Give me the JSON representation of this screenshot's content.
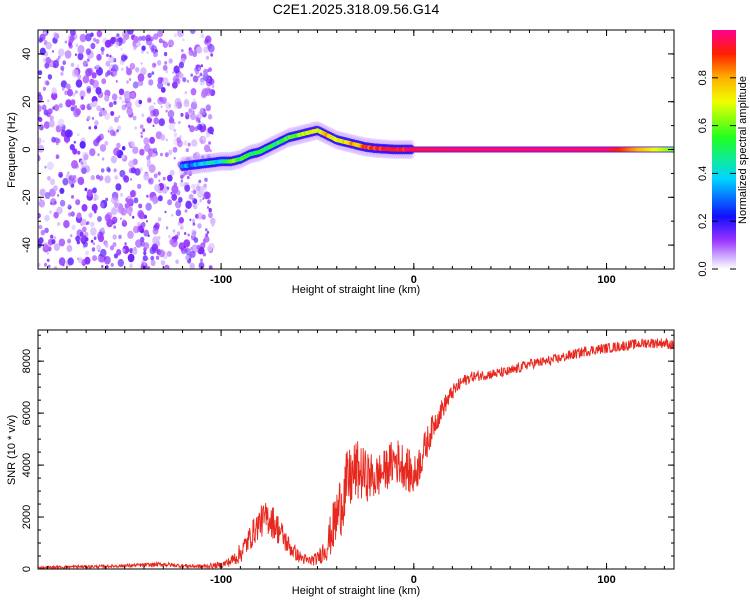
{
  "title": "C2E1.2025.318.09.56.G14",
  "colorbar": {
    "label": "Normalized spectral amplitude",
    "ticks": [
      "0.0",
      "0.2",
      "0.4",
      "0.6",
      "0.8"
    ],
    "tick_values": [
      0.0,
      0.2,
      0.4,
      0.6,
      0.8
    ],
    "range": [
      0,
      1
    ]
  },
  "chart_data": [
    {
      "type": "heatmap",
      "name": "spectrogram",
      "xlabel": "Height of straight line (km)",
      "ylabel": "Frequency (Hz)",
      "xlim": [
        -195,
        135
      ],
      "ylim": [
        -50,
        50
      ],
      "xticks": [
        "-100",
        "0",
        "100"
      ],
      "xtick_values": [
        -100,
        0,
        100
      ],
      "yticks": [
        "-40",
        "-20",
        "0",
        "20",
        "40"
      ],
      "ytick_values": [
        -40,
        -20,
        0,
        20,
        40
      ],
      "noise_region_x": [
        -195,
        -110
      ],
      "ridge": {
        "x": [
          -120,
          -110,
          -100,
          -95,
          -90,
          -85,
          -80,
          -75,
          -70,
          -65,
          -60,
          -55,
          -50,
          -45,
          -40,
          -35,
          -30,
          -25,
          -20,
          -10,
          0,
          20,
          60,
          100,
          135
        ],
        "freq": [
          -7,
          -6,
          -5,
          -5,
          -4,
          -2,
          -1,
          1,
          3,
          5,
          6,
          7,
          8,
          6,
          4,
          3,
          2,
          1,
          0.5,
          0,
          0,
          0,
          0,
          0,
          0
        ],
        "amplitude": [
          0.3,
          0.35,
          0.45,
          0.6,
          0.55,
          0.5,
          0.5,
          0.55,
          0.5,
          0.55,
          0.6,
          0.65,
          0.7,
          0.75,
          0.7,
          0.75,
          0.8,
          0.85,
          0.9,
          0.92,
          0.95,
          0.97,
          0.98,
          0.97,
          0.6
        ]
      }
    },
    {
      "type": "line",
      "name": "snr",
      "xlabel": "Height of straight line (km)",
      "ylabel": "SNR (10 * v/v)",
      "xlim": [
        -195,
        135
      ],
      "ylim": [
        0,
        9200
      ],
      "xticks": [
        "-100",
        "0",
        "100"
      ],
      "xtick_values": [
        -100,
        0,
        100
      ],
      "yticks": [
        "0",
        "2000",
        "4000",
        "6000",
        "8000"
      ],
      "ytick_values": [
        0,
        2000,
        4000,
        6000,
        8000
      ],
      "series": [
        {
          "name": "SNR",
          "color": "#e8281e",
          "x": [
            -195,
            -180,
            -160,
            -140,
            -130,
            -120,
            -110,
            -100,
            -95,
            -90,
            -85,
            -80,
            -75,
            -70,
            -65,
            -60,
            -55,
            -50,
            -45,
            -40,
            -35,
            -30,
            -25,
            -20,
            -15,
            -10,
            -5,
            0,
            5,
            10,
            15,
            20,
            25,
            30,
            40,
            50,
            60,
            70,
            80,
            90,
            100,
            110,
            120,
            130,
            135
          ],
          "y": [
            50,
            80,
            100,
            150,
            180,
            120,
            100,
            150,
            300,
            600,
            1200,
            1800,
            2000,
            1500,
            900,
            500,
            300,
            400,
            900,
            2000,
            3200,
            3800,
            3600,
            3500,
            3800,
            4200,
            4000,
            3500,
            4500,
            5500,
            6200,
            6800,
            7200,
            7400,
            7500,
            7600,
            7900,
            8000,
            8200,
            8400,
            8500,
            8600,
            8700,
            8700,
            8600
          ],
          "noise": [
            40,
            60,
            60,
            80,
            90,
            80,
            80,
            120,
            200,
            400,
            500,
            600,
            700,
            600,
            400,
            250,
            200,
            250,
            600,
            1200,
            1300,
            1200,
            1000,
            900,
            800,
            900,
            900,
            800,
            700,
            500,
            400,
            300,
            250,
            200,
            200,
            200,
            200,
            200,
            200,
            200,
            200,
            200,
            200,
            200,
            200
          ]
        }
      ]
    }
  ]
}
